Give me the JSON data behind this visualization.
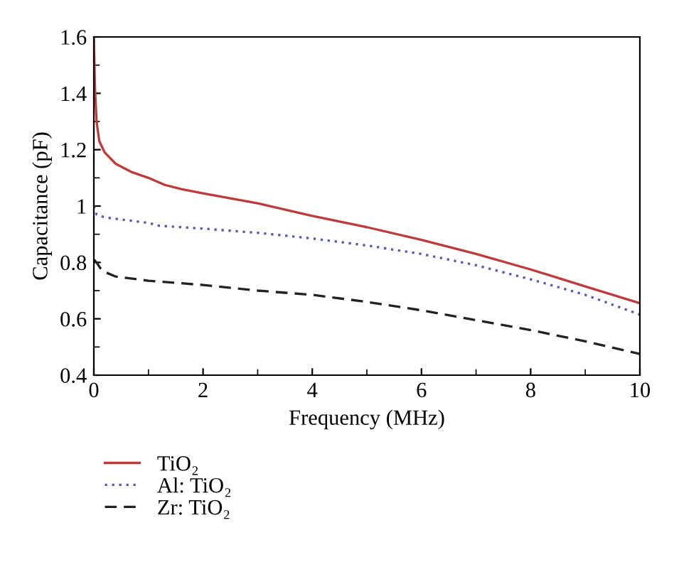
{
  "chart_data": {
    "type": "line",
    "xlabel": "Frequency (MHz)",
    "ylabel": "Capacitance (pF)",
    "xlim": [
      0,
      10
    ],
    "ylim": [
      0.4,
      1.6
    ],
    "xticks": [
      0,
      2,
      4,
      6,
      8,
      10
    ],
    "yticks": [
      0.4,
      0.6,
      0.8,
      1,
      1.2,
      1.4,
      1.6
    ],
    "grid": false,
    "legend": "bottom left",
    "marker": "none",
    "series": [
      {
        "name": "TiO₂",
        "color": "#c0393b",
        "line_style": "solid",
        "x": [
          0,
          0.02,
          0.05,
          0.1,
          0.2,
          0.4,
          0.7,
          1.0,
          1.3,
          1.6,
          2,
          3,
          4,
          5,
          6,
          7,
          8,
          9,
          10
        ],
        "values": [
          1.6,
          1.42,
          1.3,
          1.23,
          1.19,
          1.15,
          1.12,
          1.1,
          1.075,
          1.06,
          1.045,
          1.01,
          0.965,
          0.925,
          0.88,
          0.83,
          0.775,
          0.715,
          0.655
        ]
      },
      {
        "name": "Al: TiO₂",
        "color": "#5a5ab0",
        "line_style": "dotted",
        "x": [
          0,
          0.05,
          0.2,
          1,
          1.2,
          2,
          3,
          4,
          5,
          6,
          7,
          8,
          9,
          10
        ],
        "values": [
          1.0,
          0.97,
          0.96,
          0.94,
          0.93,
          0.92,
          0.905,
          0.885,
          0.86,
          0.83,
          0.79,
          0.74,
          0.685,
          0.615
        ]
      },
      {
        "name": "Zr: TiO₂",
        "color": "#222222",
        "line_style": "dashed",
        "x": [
          0,
          0.05,
          0.15,
          0.4,
          1,
          2,
          3,
          4,
          5,
          6,
          7,
          8,
          9,
          10
        ],
        "values": [
          0.81,
          0.8,
          0.77,
          0.75,
          0.735,
          0.72,
          0.7,
          0.685,
          0.66,
          0.63,
          0.595,
          0.56,
          0.52,
          0.475
        ]
      }
    ]
  }
}
